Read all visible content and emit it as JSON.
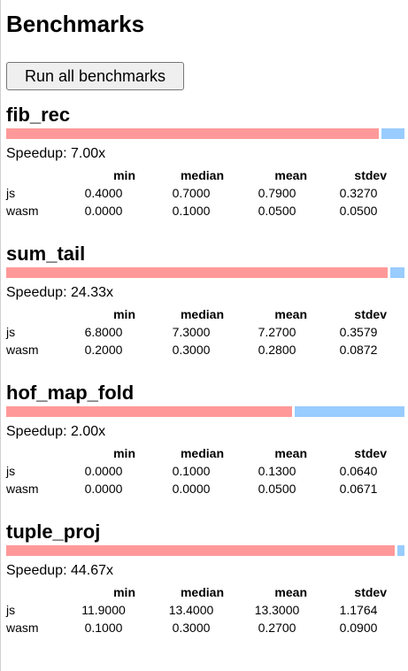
{
  "page": {
    "title": "Benchmarks",
    "run_button_label": "Run all benchmarks"
  },
  "table_headers": [
    "min",
    "median",
    "mean",
    "stdev"
  ],
  "speedup_label": "Speedup:",
  "colors": {
    "js_bar": "#ff9999",
    "wasm_bar": "#99ccff"
  },
  "benchmarks": [
    {
      "name": "fib_rec",
      "speedup": "7.00x",
      "rows": [
        {
          "label": "js",
          "min": "0.4000",
          "median": "0.7000",
          "mean": "0.7900",
          "stdev": "0.3270"
        },
        {
          "label": "wasm",
          "min": "0.0000",
          "median": "0.1000",
          "mean": "0.0500",
          "stdev": "0.0500"
        }
      ]
    },
    {
      "name": "sum_tail",
      "speedup": "24.33x",
      "rows": [
        {
          "label": "js",
          "min": "6.8000",
          "median": "7.3000",
          "mean": "7.2700",
          "stdev": "0.3579"
        },
        {
          "label": "wasm",
          "min": "0.2000",
          "median": "0.3000",
          "mean": "0.2800",
          "stdev": "0.0872"
        }
      ]
    },
    {
      "name": "hof_map_fold",
      "speedup": "2.00x",
      "rows": [
        {
          "label": "js",
          "min": "0.0000",
          "median": "0.1000",
          "mean": "0.1300",
          "stdev": "0.0640"
        },
        {
          "label": "wasm",
          "min": "0.0000",
          "median": "0.0000",
          "mean": "0.0500",
          "stdev": "0.0671"
        }
      ]
    },
    {
      "name": "tuple_proj",
      "speedup": "44.67x",
      "rows": [
        {
          "label": "js",
          "min": "11.9000",
          "median": "13.4000",
          "mean": "13.3000",
          "stdev": "1.1764"
        },
        {
          "label": "wasm",
          "min": "0.1000",
          "median": "0.3000",
          "mean": "0.2700",
          "stdev": "0.0900"
        }
      ]
    }
  ]
}
